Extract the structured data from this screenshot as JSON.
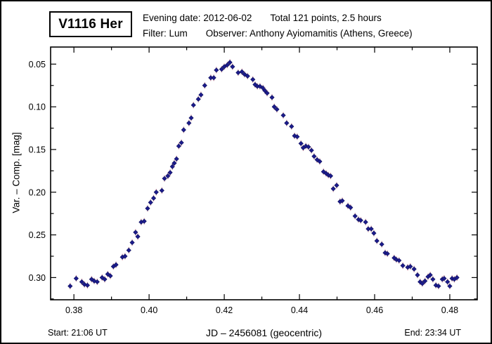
{
  "title_box": {
    "text": "V1116 Her"
  },
  "header": {
    "line1_left": "Evening date: 2012-06-02",
    "line1_right": "Total 121 points, 2.5 hours",
    "line2_left": "Filter: Lum",
    "line2_right": "Observer: Anthony Ayiomamitis (Athens, Greece)"
  },
  "footer": {
    "start": "Start: 21:06 UT",
    "end": "End: 23:34 UT"
  },
  "axes": {
    "x_label": "JD – 2456081  (geocentric)",
    "y_label": "Var. – Comp. [mag]"
  },
  "colors": {
    "point_fill": "#1c1c8e",
    "point_edge": "#12125f",
    "error_bar": "#cc8899",
    "frame": "#000000"
  },
  "chart_data": {
    "type": "scatter",
    "title": "V1116 Her light curve, evening 2012-06-02",
    "xlabel": "JD – 2456081  (geocentric)",
    "ylabel": "Var. – Comp. [mag]",
    "legend": "none",
    "grid": false,
    "marker": "diamond",
    "y_inverted": true,
    "xlim": [
      0.3738,
      0.4873
    ],
    "ylim_top_to_bottom": [
      0.03,
      0.326
    ],
    "x_major_ticks": [
      0.38,
      0.4,
      0.42,
      0.44,
      0.46,
      0.48
    ],
    "x_minor_ticks": [
      0.39,
      0.41,
      0.43,
      0.45,
      0.47
    ],
    "y_major_ticks": [
      0.05,
      0.1,
      0.15,
      0.2,
      0.25,
      0.3
    ],
    "y_minor_ticks": [
      0.075,
      0.125,
      0.175,
      0.225,
      0.275,
      0.325
    ],
    "points": [
      [
        0.379,
        0.31
      ],
      [
        0.3806,
        0.301
      ],
      [
        0.3821,
        0.305
      ],
      [
        0.3828,
        0.308
      ],
      [
        0.3836,
        0.309
      ],
      [
        0.3847,
        0.302
      ],
      [
        0.3854,
        0.304
      ],
      [
        0.3862,
        0.305
      ],
      [
        0.3875,
        0.3
      ],
      [
        0.3882,
        0.302
      ],
      [
        0.389,
        0.296
      ],
      [
        0.3897,
        0.298
      ],
      [
        0.3905,
        0.287
      ],
      [
        0.3912,
        0.285
      ],
      [
        0.3929,
        0.276
      ],
      [
        0.3936,
        0.275
      ],
      [
        0.3946,
        0.268
      ],
      [
        0.3955,
        0.259
      ],
      [
        0.3964,
        0.247
      ],
      [
        0.397,
        0.252
      ],
      [
        0.3979,
        0.235
      ],
      [
        0.3987,
        0.234
      ],
      [
        0.3996,
        0.219
      ],
      [
        0.4004,
        0.212
      ],
      [
        0.4012,
        0.207
      ],
      [
        0.4019,
        0.2
      ],
      [
        0.4034,
        0.198
      ],
      [
        0.4041,
        0.184
      ],
      [
        0.405,
        0.181
      ],
      [
        0.4056,
        0.177
      ],
      [
        0.4062,
        0.17
      ],
      [
        0.4067,
        0.166
      ],
      [
        0.4073,
        0.161
      ],
      [
        0.4079,
        0.146
      ],
      [
        0.4086,
        0.142
      ],
      [
        0.4092,
        0.127
      ],
      [
        0.4106,
        0.119
      ],
      [
        0.4112,
        0.113
      ],
      [
        0.4118,
        0.098
      ],
      [
        0.4131,
        0.091
      ],
      [
        0.4138,
        0.086
      ],
      [
        0.4148,
        0.075
      ],
      [
        0.4164,
        0.066
      ],
      [
        0.4172,
        0.066
      ],
      [
        0.4179,
        0.057
      ],
      [
        0.4193,
        0.056
      ],
      [
        0.42,
        0.053
      ],
      [
        0.4208,
        0.051
      ],
      [
        0.4215,
        0.048
      ],
      [
        0.4222,
        0.053
      ],
      [
        0.4237,
        0.06
      ],
      [
        0.4247,
        0.059
      ],
      [
        0.4254,
        0.062
      ],
      [
        0.4262,
        0.064
      ],
      [
        0.4276,
        0.068
      ],
      [
        0.4282,
        0.074
      ],
      [
        0.4288,
        0.076
      ],
      [
        0.4295,
        0.076
      ],
      [
        0.4303,
        0.078
      ],
      [
        0.4308,
        0.081
      ],
      [
        0.4314,
        0.084
      ],
      [
        0.4327,
        0.089
      ],
      [
        0.4333,
        0.1
      ],
      [
        0.434,
        0.103
      ],
      [
        0.4357,
        0.11
      ],
      [
        0.4366,
        0.119
      ],
      [
        0.4379,
        0.123
      ],
      [
        0.4387,
        0.134
      ],
      [
        0.4394,
        0.135
      ],
      [
        0.4404,
        0.143
      ],
      [
        0.441,
        0.148
      ],
      [
        0.4417,
        0.146
      ],
      [
        0.4424,
        0.147
      ],
      [
        0.4432,
        0.151
      ],
      [
        0.4439,
        0.158
      ],
      [
        0.4447,
        0.162
      ],
      [
        0.4454,
        0.164
      ],
      [
        0.4464,
        0.176
      ],
      [
        0.4471,
        0.178
      ],
      [
        0.4477,
        0.18
      ],
      [
        0.4483,
        0.181
      ],
      [
        0.449,
        0.196
      ],
      [
        0.4499,
        0.192
      ],
      [
        0.4508,
        0.211
      ],
      [
        0.4514,
        0.21
      ],
      [
        0.4529,
        0.216
      ],
      [
        0.4536,
        0.218
      ],
      [
        0.4548,
        0.228
      ],
      [
        0.4557,
        0.232
      ],
      [
        0.4563,
        0.233
      ],
      [
        0.4576,
        0.235
      ],
      [
        0.4583,
        0.243
      ],
      [
        0.4591,
        0.243
      ],
      [
        0.4598,
        0.248
      ],
      [
        0.4606,
        0.257
      ],
      [
        0.4619,
        0.261
      ],
      [
        0.4628,
        0.271
      ],
      [
        0.4634,
        0.272
      ],
      [
        0.4652,
        0.277
      ],
      [
        0.4658,
        0.279
      ],
      [
        0.4665,
        0.28
      ],
      [
        0.4675,
        0.286
      ],
      [
        0.4688,
        0.288
      ],
      [
        0.4695,
        0.287
      ],
      [
        0.4705,
        0.29
      ],
      [
        0.4714,
        0.297
      ],
      [
        0.4721,
        0.305
      ],
      [
        0.4727,
        0.307
      ],
      [
        0.4734,
        0.304
      ],
      [
        0.4742,
        0.299
      ],
      [
        0.4748,
        0.297
      ],
      [
        0.4755,
        0.302
      ],
      [
        0.4763,
        0.309
      ],
      [
        0.477,
        0.31
      ],
      [
        0.478,
        0.302
      ],
      [
        0.4785,
        0.301
      ],
      [
        0.4794,
        0.305
      ],
      [
        0.48,
        0.31
      ],
      [
        0.4806,
        0.301
      ],
      [
        0.4812,
        0.302
      ],
      [
        0.4819,
        0.3
      ]
    ]
  }
}
